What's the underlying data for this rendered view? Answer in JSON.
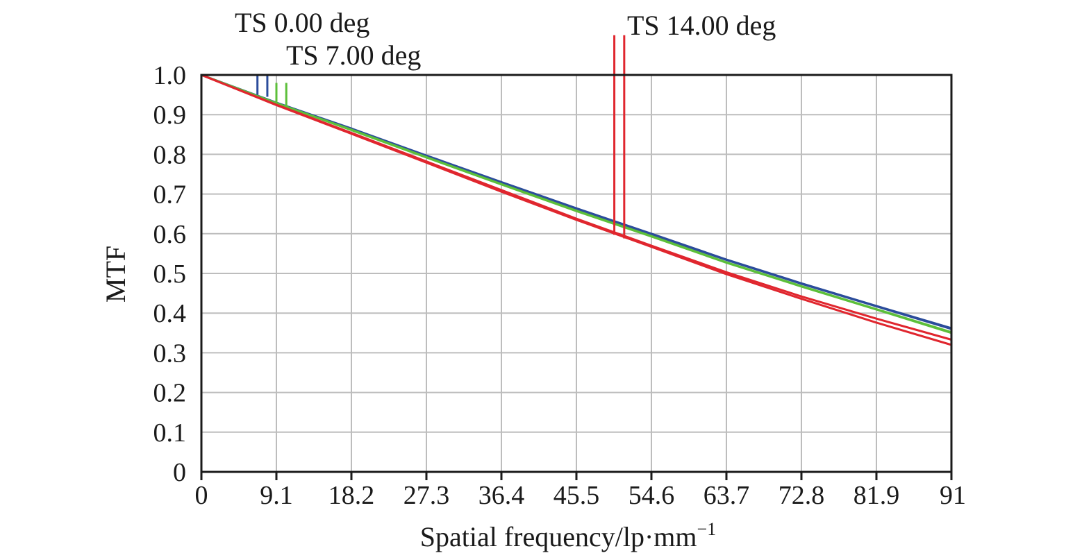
{
  "chart_data": {
    "type": "line",
    "title": "",
    "xlabel": "Spatial frequency/lp·mm",
    "xlabel_superscript": "−1",
    "ylabel": "MTF",
    "xlim": [
      0,
      91
    ],
    "ylim": [
      0,
      1.0
    ],
    "x_ticks": [
      0,
      9.1,
      18.2,
      27.3,
      36.4,
      45.5,
      54.6,
      63.7,
      72.8,
      81.9,
      91
    ],
    "x_tick_labels": [
      "0",
      "9.1",
      "18.2",
      "27.3",
      "36.4",
      "45.5",
      "54.6",
      "63.7",
      "72.8",
      "81.9",
      "91"
    ],
    "y_ticks": [
      0,
      0.1,
      0.2,
      0.3,
      0.4,
      0.5,
      0.6,
      0.7,
      0.8,
      0.9,
      1.0
    ],
    "y_tick_labels": [
      "0",
      "0.1",
      "0.2",
      "0.3",
      "0.4",
      "0.5",
      "0.6",
      "0.7",
      "0.8",
      "0.9",
      "1.0"
    ],
    "grid": true,
    "series": [
      {
        "label": "TS 0.00 deg",
        "line": "T",
        "color": "#2b4c9b",
        "x": [
          0,
          9.1,
          18.2,
          27.3,
          36.4,
          45.5,
          54.6,
          63.7,
          72.8,
          81.9,
          91
        ],
        "y": [
          1.0,
          0.93,
          0.865,
          0.797,
          0.73,
          0.664,
          0.6,
          0.535,
          0.475,
          0.418,
          0.362
        ]
      },
      {
        "label": "TS 0.00 deg",
        "line": "S",
        "color": "#2b4c9b",
        "x": [
          0,
          9.1,
          18.2,
          27.3,
          36.4,
          45.5,
          54.6,
          63.7,
          72.8,
          81.9,
          91
        ],
        "y": [
          1.0,
          0.93,
          0.864,
          0.796,
          0.729,
          0.663,
          0.599,
          0.534,
          0.474,
          0.417,
          0.36
        ]
      },
      {
        "label": "TS 7.00 deg",
        "line": "T",
        "color": "#5cbf3a",
        "x": [
          0,
          9.1,
          18.2,
          27.3,
          36.4,
          45.5,
          54.6,
          63.7,
          72.8,
          81.9,
          91
        ],
        "y": [
          1.0,
          0.929,
          0.862,
          0.793,
          0.725,
          0.658,
          0.594,
          0.528,
          0.468,
          0.41,
          0.352
        ]
      },
      {
        "label": "TS 7.00 deg",
        "line": "S",
        "color": "#5cbf3a",
        "x": [
          0,
          9.1,
          18.2,
          27.3,
          36.4,
          45.5,
          54.6,
          63.7,
          72.8,
          81.9,
          91
        ],
        "y": [
          1.0,
          0.929,
          0.861,
          0.792,
          0.724,
          0.657,
          0.593,
          0.527,
          0.467,
          0.409,
          0.35
        ]
      },
      {
        "label": "TS 14.00 deg",
        "line": "T",
        "color": "#e0262e",
        "x": [
          0,
          9.1,
          18.2,
          27.3,
          36.4,
          45.5,
          54.6,
          63.7,
          72.8,
          81.9,
          91
        ],
        "y": [
          1.0,
          0.925,
          0.854,
          0.782,
          0.71,
          0.638,
          0.57,
          0.503,
          0.442,
          0.386,
          0.333
        ]
      },
      {
        "label": "TS 14.00 deg",
        "line": "S",
        "color": "#e0262e",
        "x": [
          0,
          9.1,
          18.2,
          27.3,
          36.4,
          45.5,
          54.6,
          63.7,
          72.8,
          81.9,
          91
        ],
        "y": [
          1.0,
          0.924,
          0.852,
          0.779,
          0.706,
          0.635,
          0.567,
          0.498,
          0.436,
          0.376,
          0.32
        ]
      }
    ],
    "legend_markers": [
      {
        "label": "TS 0.00 deg",
        "color": "#2b4c9b",
        "x": [
          6.8,
          8.0
        ],
        "y_bottom": [
          0.95,
          0.945
        ]
      },
      {
        "label": "TS 7.00 deg",
        "color": "#5cbf3a",
        "x": [
          9.1,
          10.3
        ],
        "y_bottom": [
          0.93,
          0.92
        ]
      },
      {
        "label": "TS 14.00 deg",
        "color": "#e0262e",
        "x": [
          50.1,
          51.3
        ],
        "y_bottom": [
          0.597,
          0.588
        ]
      }
    ],
    "legend_labels": [
      "TS 0.00 deg",
      "TS 7.00 deg",
      "TS 14.00 deg"
    ]
  }
}
